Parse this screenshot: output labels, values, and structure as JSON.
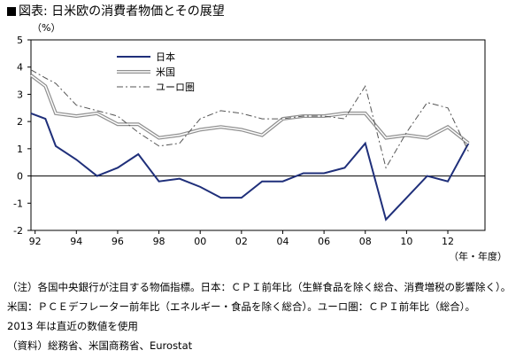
{
  "title": "図表: 日米欧の消費者物価とその展望",
  "chart_data": {
    "type": "line",
    "ylabel": "（%）",
    "xlabel": "（年・年度）",
    "ylim": [
      -2,
      5
    ],
    "yticks": [
      5,
      4,
      3,
      2,
      1,
      0,
      -1,
      -2
    ],
    "xlim": [
      1991.8,
      2013.8
    ],
    "xticks": [
      1992,
      1994,
      1996,
      1998,
      2000,
      2002,
      2004,
      2006,
      2008,
      2010,
      2012
    ],
    "xtick_labels": [
      "92",
      "94",
      "96",
      "98",
      "00",
      "02",
      "04",
      "06",
      "08",
      "10",
      "12"
    ],
    "grid": false,
    "legend_position": "top-left",
    "series": [
      {
        "name": "日本",
        "color": "#1f2f7a",
        "style": "solid",
        "x": [
          1991.8,
          1992.5,
          1993,
          1994,
          1995,
          1996,
          1997,
          1998,
          1999,
          2000,
          2001,
          2002,
          2003,
          2004,
          2005,
          2006,
          2007,
          2008,
          2009,
          2010,
          2011,
          2012,
          2013
        ],
        "values": [
          2.3,
          2.1,
          1.1,
          0.6,
          0.0,
          0.3,
          0.8,
          -0.2,
          -0.1,
          -0.4,
          -0.8,
          -0.8,
          -0.2,
          -0.2,
          0.1,
          0.1,
          0.3,
          1.2,
          -1.6,
          -0.8,
          0.0,
          -0.2,
          1.2
        ]
      },
      {
        "name": "米国",
        "color": "#909090",
        "style": "double",
        "x": [
          1991.8,
          1992.5,
          1993,
          1994,
          1995,
          1996,
          1997,
          1998,
          1999,
          2000,
          2001,
          2002,
          2003,
          2004,
          2005,
          2006,
          2007,
          2008,
          2009,
          2010,
          2011,
          2012,
          2013
        ],
        "values": [
          3.7,
          3.3,
          2.3,
          2.2,
          2.3,
          1.9,
          1.9,
          1.4,
          1.5,
          1.7,
          1.8,
          1.7,
          1.5,
          2.1,
          2.2,
          2.2,
          2.3,
          2.3,
          1.4,
          1.5,
          1.4,
          1.8,
          1.2
        ]
      },
      {
        "name": "ユーロ圏",
        "color": "#555555",
        "style": "dashdot",
        "x": [
          1991.8,
          1992.5,
          1993,
          1994,
          1995,
          1996,
          1997,
          1998,
          1999,
          2000,
          2001,
          2002,
          2003,
          2004,
          2005,
          2006,
          2007,
          2008,
          2009,
          2010,
          2011,
          2012,
          2013
        ],
        "values": [
          3.9,
          3.6,
          3.4,
          2.6,
          2.4,
          2.2,
          1.6,
          1.1,
          1.2,
          2.1,
          2.4,
          2.3,
          2.1,
          2.1,
          2.2,
          2.2,
          2.1,
          3.3,
          0.3,
          1.6,
          2.7,
          2.5,
          0.9
        ]
      }
    ]
  },
  "notes": [
    "（注）各国中央銀行が注目する物価指標。日本：ＣＰＩ前年比（生鮮食品を除く総合、消費増税の影響除く）。",
    "米国：ＰＣＥデフレーター前年比（エネルギー・食品を除く総合）。ユーロ圏：ＣＰＩ前年比（総合）。",
    "2013 年は直近の数値を使用",
    "（資料）総務省、米国商務省、Eurostat"
  ]
}
